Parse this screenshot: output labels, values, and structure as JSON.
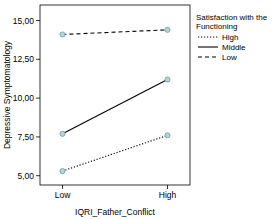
{
  "chart_data": {
    "type": "line",
    "x_label": "IQRI_Father_Conflict",
    "y_label": "Depressive Symptomatology",
    "legend_title": "Satisfaction with the Functioning",
    "categories": [
      "Low",
      "High"
    ],
    "series": [
      {
        "name": "High",
        "color": "#000000",
        "line_style": "dotted",
        "marker": "circle",
        "values": [
          5.3,
          7.6
        ]
      },
      {
        "name": "Middle",
        "color": "#000000",
        "line_style": "solid",
        "marker": "circle",
        "values": [
          7.7,
          11.2
        ]
      },
      {
        "name": "Low",
        "color": "#000000",
        "line_style": "dashed",
        "marker": "circle",
        "values": [
          14.1,
          14.4
        ]
      }
    ],
    "ylim": [
      4.4,
      16
    ],
    "yticks": [
      {
        "value": 5,
        "label": "5,00"
      },
      {
        "value": 7.5,
        "label": "7,50"
      },
      {
        "value": 10,
        "label": "10,00"
      },
      {
        "value": 12.5,
        "label": "12,50"
      },
      {
        "value": 15,
        "label": "15,00"
      }
    ],
    "grid": false,
    "legend": "right"
  }
}
